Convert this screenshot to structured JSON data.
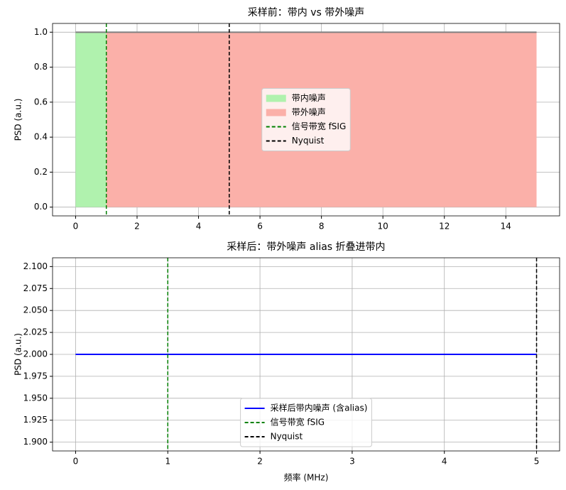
{
  "chart_data": [
    {
      "type": "area",
      "title": "采样前：带内 vs 带外噪声",
      "ylabel": "PSD (a.u.)",
      "series": [
        {
          "name": "带内噪声",
          "color": "#b0f2ae",
          "fill": true,
          "x": [
            0,
            1
          ],
          "values": [
            1,
            1
          ]
        },
        {
          "name": "带外噪声",
          "color": "#fbb0a9",
          "fill": true,
          "x": [
            1,
            15
          ],
          "values": [
            1,
            1
          ]
        },
        {
          "color": "#808080",
          "x": [
            0,
            15
          ],
          "values": [
            1,
            1
          ]
        }
      ],
      "vlines": [
        {
          "name": "信号带宽 fSIG",
          "x": 1,
          "color": "green"
        },
        {
          "name": "Nyquist",
          "x": 5,
          "color": "black"
        }
      ],
      "xlim": [
        -0.75,
        15.75
      ],
      "xticks": [
        0,
        2,
        4,
        6,
        8,
        10,
        12,
        14
      ],
      "ylim": [
        -0.05,
        1.05
      ],
      "yticks": [
        {
          "value": 0,
          "label": "0.0"
        },
        0.2,
        0.4,
        0.6,
        0.8,
        {
          "value": 1,
          "label": "1.0"
        }
      ],
      "grid": true,
      "legend": "center"
    },
    {
      "type": "line",
      "title": "采样后：带外噪声 alias 折叠进带内",
      "ylabel": "PSD (a.u.)",
      "xlabel": "频率 (MHz)",
      "series": [
        {
          "name": "采样后带内噪声 (含alias)",
          "color": "blue",
          "x": [
            0,
            5
          ],
          "values": [
            2,
            2
          ]
        }
      ],
      "vlines": [
        {
          "name": "信号带宽 fSIG",
          "x": 1,
          "color": "green"
        },
        {
          "name": "Nyquist",
          "x": 5,
          "color": "black"
        }
      ],
      "xlim": [
        -0.25,
        5.25
      ],
      "xticks": [
        0,
        1,
        2,
        3,
        4,
        5
      ],
      "ylim": [
        1.89,
        2.11
      ],
      "yticks": [
        {
          "value": 1.9,
          "label": "1.900"
        },
        1.925,
        {
          "value": 1.95,
          "label": "1.950"
        },
        1.975,
        {
          "value": 2,
          "label": "2.000"
        },
        2.025,
        {
          "value": 2.05,
          "label": "2.050"
        },
        2.075,
        {
          "value": 2.1,
          "label": "2.100"
        }
      ],
      "grid": true,
      "legend": "lower center"
    }
  ]
}
